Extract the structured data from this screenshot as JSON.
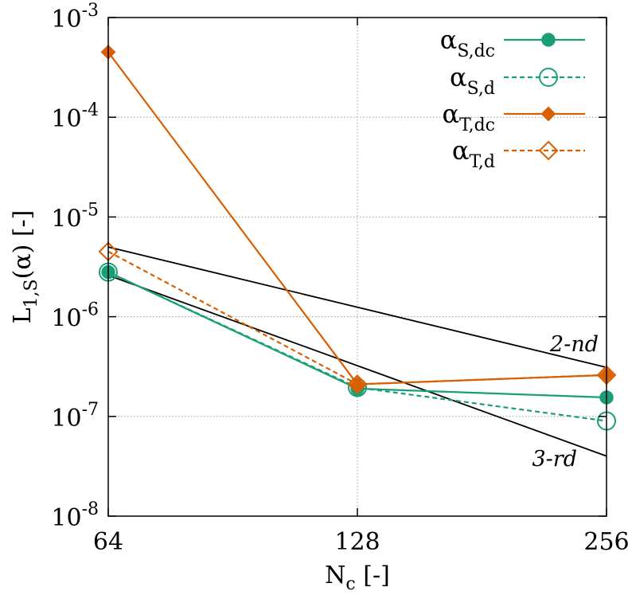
{
  "chart_data": {
    "type": "line",
    "x_scale": "log2",
    "y_scale": "log10",
    "x": [
      64,
      128,
      256
    ],
    "xlim": [
      64,
      256
    ],
    "ylim": [
      1e-08,
      0.001
    ],
    "grid": true,
    "legend_position": "top-right",
    "xlabel": {
      "main": "N",
      "sub": "c",
      "suffix": " [-]"
    },
    "ylabel": {
      "main": "L",
      "sub": "1,S",
      "suffix": "(α) [-]"
    },
    "x_ticks": [
      {
        "value": 64,
        "label": "64"
      },
      {
        "value": 128,
        "label": "128"
      },
      {
        "value": 256,
        "label": "256"
      }
    ],
    "y_ticks": [
      {
        "value": 1e-08,
        "base": "10",
        "exp": "-8"
      },
      {
        "value": 1e-07,
        "base": "10",
        "exp": "-7"
      },
      {
        "value": 1e-06,
        "base": "10",
        "exp": "-6"
      },
      {
        "value": 1e-05,
        "base": "10",
        "exp": "-5"
      },
      {
        "value": 0.0001,
        "base": "10",
        "exp": "-4"
      },
      {
        "value": 0.001,
        "base": "10",
        "exp": "-3"
      }
    ],
    "series": [
      {
        "key": "s-dc",
        "name": "α",
        "sub": "S,dc",
        "color": "#1a9e77",
        "dash": false,
        "marker": "circle-filled",
        "values": [
          2.8e-06,
          1.9e-07,
          1.55e-07
        ]
      },
      {
        "key": "s-d",
        "name": "α",
        "sub": "S,d",
        "color": "#1a9e77",
        "dash": true,
        "marker": "circle-open",
        "values": [
          2.8e-06,
          1.95e-07,
          9e-08
        ]
      },
      {
        "key": "t-dc",
        "name": "α",
        "sub": "T,dc",
        "color": "#d95f02",
        "dash": false,
        "marker": "diamond-filled",
        "values": [
          0.00045,
          2.1e-07,
          2.6e-07
        ]
      },
      {
        "key": "t-d",
        "name": "α",
        "sub": "T,d",
        "color": "#d95f02",
        "dash": true,
        "marker": "diamond-open",
        "values": [
          4.5e-06,
          2.1e-07,
          2.6e-07
        ]
      }
    ],
    "reference_lines": [
      {
        "key": "second-order",
        "label": "2-nd",
        "color": "#000000",
        "x": [
          64,
          256
        ],
        "y": [
          5e-06,
          3.1e-07
        ]
      },
      {
        "key": "third-order",
        "label": "3-rd",
        "color": "#000000",
        "x": [
          64,
          256
        ],
        "y": [
          2.6e-06,
          4e-08
        ]
      }
    ]
  }
}
